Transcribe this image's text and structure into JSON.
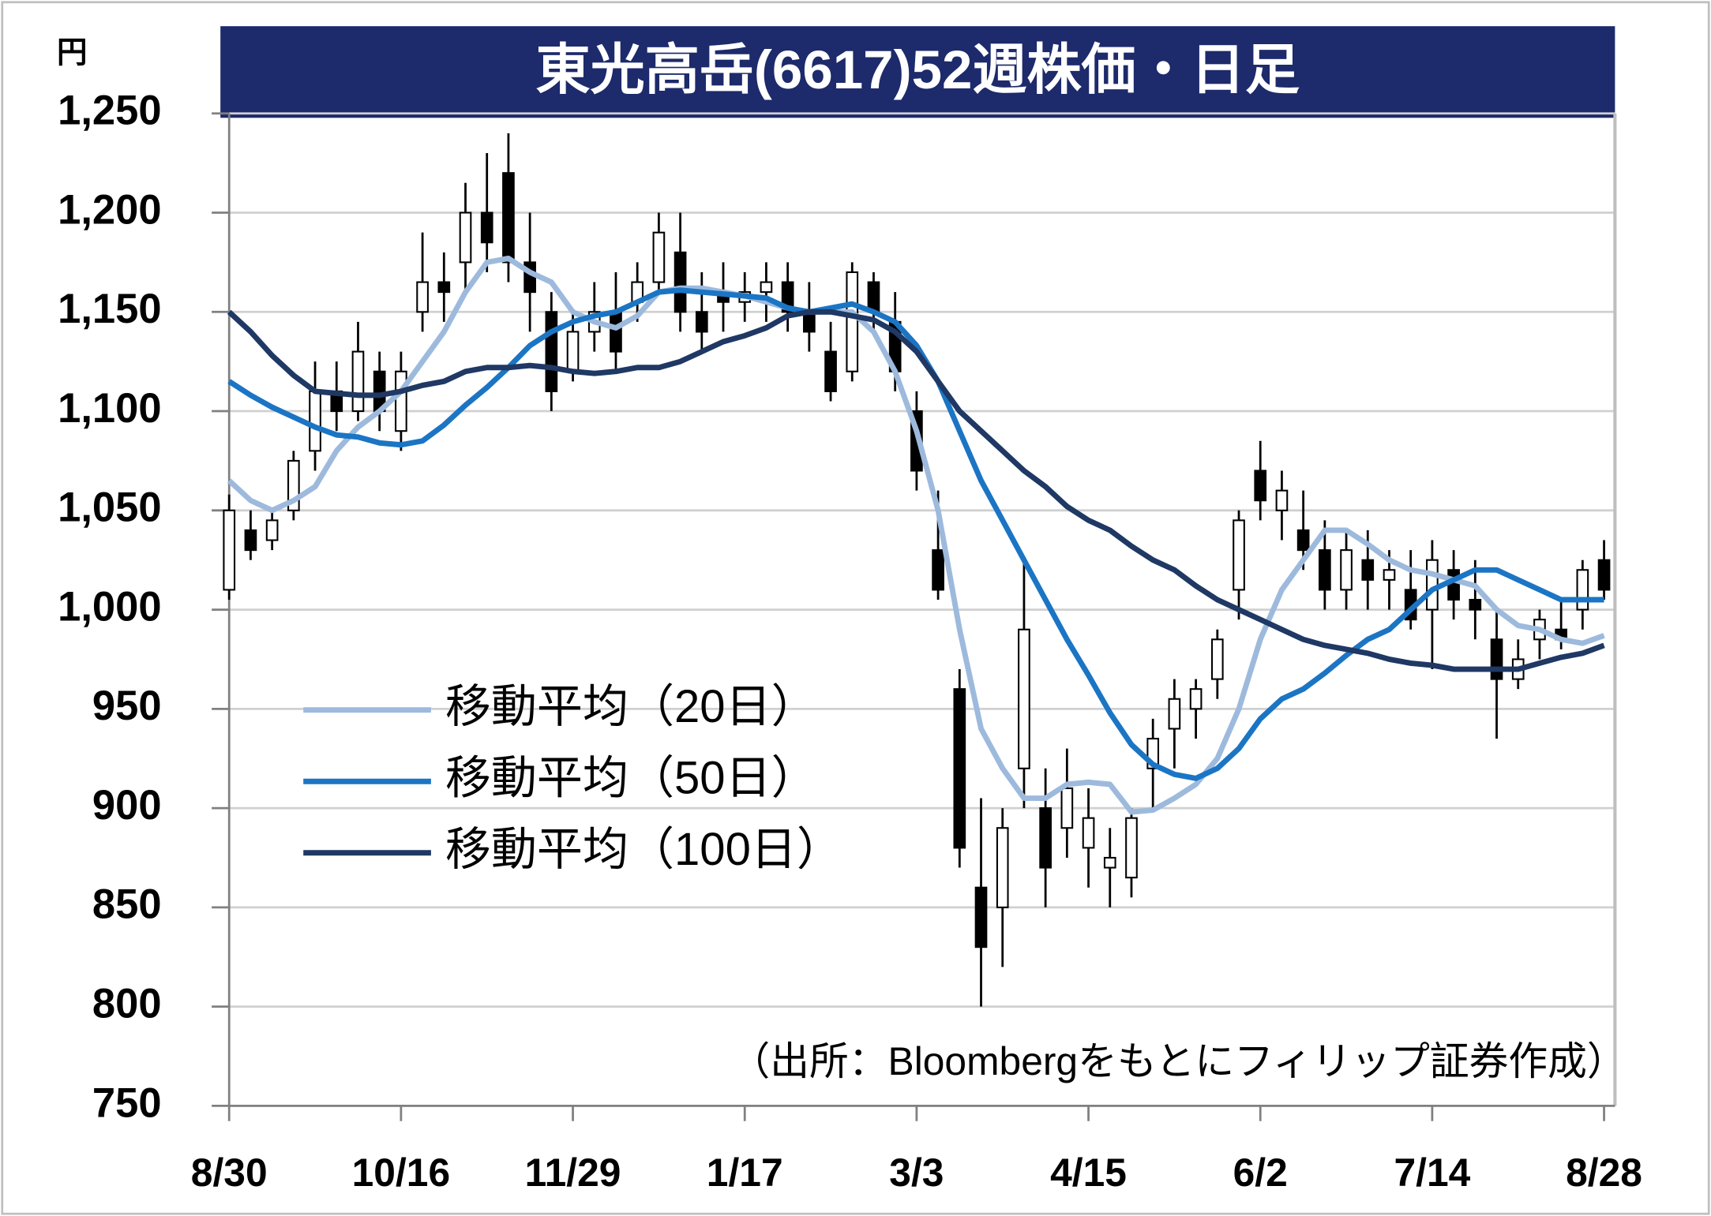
{
  "chart_data": {
    "type": "candlestick",
    "title": "東光高岳(6617)52週株価・日足",
    "unit_label": "円",
    "source": "（出所：Bloombergをもとにフィリップ証券作成）",
    "categories": [
      "8/30",
      null,
      null,
      null,
      null,
      null,
      null,
      null,
      "10/16",
      null,
      null,
      null,
      null,
      null,
      null,
      null,
      "11/29",
      null,
      null,
      null,
      null,
      null,
      null,
      null,
      "1/17",
      null,
      null,
      null,
      null,
      null,
      null,
      null,
      "3/3",
      null,
      null,
      null,
      null,
      null,
      null,
      null,
      "4/15",
      null,
      null,
      null,
      null,
      null,
      null,
      null,
      "6/2",
      null,
      null,
      null,
      null,
      null,
      null,
      null,
      "7/14",
      null,
      null,
      null,
      null,
      null,
      null,
      null,
      "8/28"
    ],
    "candles": {
      "open": [
        1010,
        1040,
        1035,
        1050,
        1080,
        1110,
        1100,
        1120,
        1090,
        1150,
        1165,
        1175,
        1200,
        1220,
        1175,
        1150,
        1120,
        1140,
        1150,
        1155,
        1165,
        1180,
        1150,
        1160,
        1155,
        1160,
        1165,
        1150,
        1130,
        1120,
        1165,
        1145,
        1100,
        1030,
        960,
        860,
        850,
        920,
        900,
        890,
        880,
        870,
        865,
        920,
        940,
        950,
        965,
        1010,
        1070,
        1050,
        1040,
        1030,
        1010,
        1025,
        1015,
        1010,
        1000,
        1020,
        1005,
        985,
        965,
        985,
        990,
        1000,
        1025
      ],
      "high": [
        1058,
        1050,
        1050,
        1080,
        1125,
        1125,
        1145,
        1130,
        1130,
        1190,
        1180,
        1215,
        1230,
        1240,
        1200,
        1160,
        1150,
        1165,
        1170,
        1175,
        1200,
        1200,
        1170,
        1175,
        1170,
        1175,
        1175,
        1165,
        1145,
        1175,
        1170,
        1160,
        1110,
        1060,
        970,
        905,
        900,
        1025,
        920,
        930,
        910,
        890,
        900,
        945,
        965,
        965,
        990,
        1050,
        1085,
        1070,
        1060,
        1045,
        1040,
        1040,
        1030,
        1030,
        1035,
        1030,
        1025,
        1000,
        985,
        1000,
        1005,
        1025,
        1035
      ],
      "low": [
        1005,
        1025,
        1030,
        1045,
        1070,
        1090,
        1095,
        1090,
        1080,
        1140,
        1145,
        1160,
        1170,
        1165,
        1140,
        1100,
        1115,
        1130,
        1120,
        1145,
        1160,
        1140,
        1130,
        1140,
        1145,
        1145,
        1140,
        1130,
        1105,
        1115,
        1140,
        1110,
        1060,
        1005,
        870,
        800,
        820,
        900,
        850,
        875,
        860,
        850,
        855,
        900,
        920,
        935,
        955,
        995,
        1045,
        1035,
        1020,
        1000,
        1000,
        1000,
        1000,
        990,
        970,
        995,
        985,
        935,
        960,
        975,
        980,
        990,
        1005
      ],
      "close": [
        1050,
        1030,
        1045,
        1075,
        1110,
        1100,
        1130,
        1100,
        1120,
        1165,
        1160,
        1200,
        1185,
        1175,
        1160,
        1110,
        1140,
        1150,
        1130,
        1165,
        1190,
        1150,
        1140,
        1155,
        1160,
        1165,
        1150,
        1140,
        1110,
        1170,
        1150,
        1120,
        1070,
        1010,
        880,
        830,
        890,
        990,
        870,
        910,
        895,
        875,
        895,
        935,
        955,
        960,
        985,
        1045,
        1055,
        1060,
        1030,
        1010,
        1030,
        1015,
        1020,
        995,
        1025,
        1005,
        1000,
        965,
        975,
        995,
        985,
        1020,
        1010
      ]
    },
    "series": [
      {
        "name": "移動平均（20日）",
        "color": "#9dbadd",
        "values": [
          1065,
          1055,
          1050,
          1055,
          1062,
          1080,
          1092,
          1100,
          1110,
          1125,
          1140,
          1160,
          1175,
          1177,
          1170,
          1165,
          1150,
          1145,
          1142,
          1148,
          1160,
          1162,
          1162,
          1160,
          1158,
          1155,
          1152,
          1150,
          1150,
          1150,
          1140,
          1120,
          1090,
          1050,
          990,
          940,
          920,
          905,
          905,
          912,
          913,
          912,
          898,
          899,
          905,
          912,
          925,
          950,
          985,
          1010,
          1025,
          1040,
          1040,
          1033,
          1025,
          1020,
          1018,
          1015,
          1012,
          1000,
          992,
          990,
          985,
          983,
          987
        ]
      },
      {
        "name": "移動平均（50日）",
        "color": "#1b75c4",
        "values": [
          1115,
          1108,
          1102,
          1097,
          1092,
          1088,
          1087,
          1084,
          1083,
          1085,
          1093,
          1103,
          1112,
          1122,
          1133,
          1140,
          1145,
          1148,
          1150,
          1155,
          1160,
          1161,
          1160,
          1159,
          1158,
          1157,
          1152,
          1150,
          1152,
          1154,
          1150,
          1145,
          1133,
          1115,
          1090,
          1065,
          1045,
          1025,
          1005,
          985,
          967,
          948,
          932,
          922,
          917,
          915,
          920,
          930,
          945,
          955,
          960,
          968,
          977,
          985,
          990,
          1000,
          1010,
          1015,
          1020,
          1020,
          1015,
          1010,
          1005,
          1005,
          1005
        ]
      },
      {
        "name": "移動平均（100日）",
        "color": "#1f3864",
        "values": [
          1150,
          1140,
          1128,
          1118,
          1110,
          1109,
          1108,
          1108,
          1110,
          1113,
          1115,
          1120,
          1122,
          1122,
          1123,
          1122,
          1120,
          1119,
          1120,
          1122,
          1122,
          1125,
          1130,
          1135,
          1138,
          1142,
          1148,
          1150,
          1150,
          1148,
          1146,
          1140,
          1130,
          1115,
          1100,
          1090,
          1080,
          1070,
          1062,
          1052,
          1045,
          1040,
          1032,
          1025,
          1020,
          1012,
          1005,
          1000,
          995,
          990,
          985,
          982,
          980,
          978,
          975,
          973,
          972,
          970,
          970,
          970,
          970,
          973,
          976,
          978,
          982
        ]
      }
    ],
    "ylim": [
      750,
      1250
    ],
    "yticks": [
      {
        "value": 1250,
        "label": "1,250"
      },
      {
        "value": 1200,
        "label": "1,200"
      },
      {
        "value": 1150,
        "label": "1,150"
      },
      {
        "value": 1100,
        "label": "1,100"
      },
      {
        "value": 1050,
        "label": "1,050"
      },
      {
        "value": 1000,
        "label": "1,000"
      },
      950,
      900,
      850,
      800,
      750
    ],
    "grid": true
  }
}
